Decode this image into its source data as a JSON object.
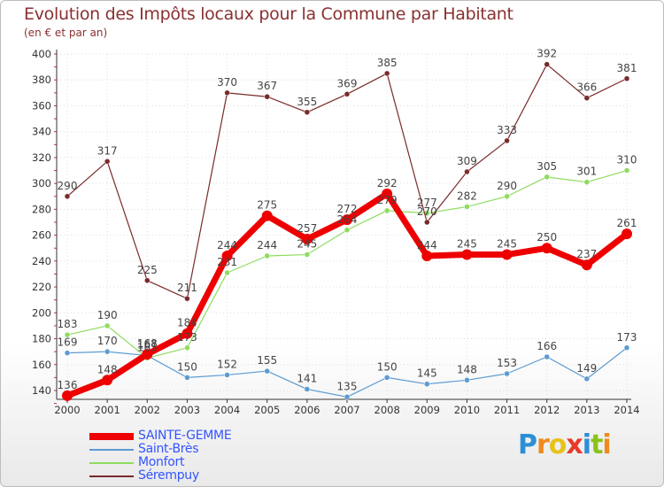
{
  "colors": {
    "title": "#8a3030",
    "axis": "#333333",
    "grid": "#dddddd",
    "label": "#444444",
    "tick_minor": "#cc3333"
  },
  "chart_data": {
    "type": "line",
    "title": "Evolution des Impôts locaux pour la Commune par Habitant",
    "subtitle": "(en € et par an)",
    "xlabel": "",
    "ylabel": "",
    "ylim": [
      130,
      400
    ],
    "yticks": [
      140,
      160,
      180,
      200,
      220,
      240,
      260,
      280,
      300,
      320,
      340,
      360,
      380,
      400
    ],
    "grid": true,
    "categories": [
      "2000",
      "2001",
      "2002",
      "2003",
      "2004",
      "2005",
      "2006",
      "2007",
      "2008",
      "2009",
      "2010",
      "2011",
      "2012",
      "2013",
      "2014"
    ],
    "series": [
      {
        "name": "SAINTE-GEMME",
        "color": "#ee0000",
        "legend_color": "#3355ff",
        "emphasis": true,
        "values": [
          136,
          148,
          168,
          184,
          244,
          275,
          257,
          272,
          292,
          244,
          245,
          245,
          250,
          237,
          261
        ],
        "labels": [
          "136",
          "148",
          "168",
          "184",
          "244",
          "275",
          "257",
          "272",
          "292",
          "244",
          "245",
          "245",
          "250",
          "237",
          "261"
        ]
      },
      {
        "name": "Saint-Brès",
        "color": "#5c9bd1",
        "legend_color": "#3355ff",
        "emphasis": false,
        "values": [
          169,
          170,
          167,
          150,
          152,
          155,
          141,
          135,
          150,
          145,
          148,
          153,
          166,
          149,
          173
        ],
        "labels": [
          "169",
          "170",
          "167",
          "150",
          "152",
          "155",
          "141",
          "135",
          "150",
          "145",
          "148",
          "153",
          "166",
          "149",
          "173"
        ]
      },
      {
        "name": "Monfort",
        "color": "#8fdc5f",
        "legend_color": "#3355ff",
        "emphasis": false,
        "values": [
          183,
          190,
          165,
          173,
          231,
          244,
          245,
          264,
          279,
          277,
          282,
          290,
          305,
          301,
          310
        ],
        "labels": [
          "183",
          "190",
          "165",
          "173",
          "231",
          "244",
          "245",
          "264",
          "279",
          "277",
          "282",
          "290",
          "305",
          "301",
          "310"
        ]
      },
      {
        "name": "Sérempuy",
        "color": "#7a2a2a",
        "legend_color": "#3355ff",
        "emphasis": false,
        "values": [
          290,
          317,
          225,
          211,
          370,
          367,
          355,
          369,
          385,
          270,
          309,
          333,
          392,
          366,
          381
        ],
        "labels": [
          "290",
          "317",
          "225",
          "211",
          "370",
          "367",
          "355",
          "369",
          "385",
          "270",
          "309",
          "333",
          "392",
          "366",
          "381"
        ]
      }
    ]
  },
  "legend": {
    "items": [
      {
        "label": "SAINTE-GEMME"
      },
      {
        "label": "Saint-Brès"
      },
      {
        "label": "Monfort"
      },
      {
        "label": "Sérempuy"
      }
    ]
  },
  "logo": {
    "letters": [
      "P",
      "r",
      "o",
      "x",
      "i",
      "t",
      "i"
    ],
    "colors": [
      "#2b8fd6",
      "#f08a1c",
      "#e8c21a",
      "#e83a2a",
      "#2b8fd6",
      "#8ac21a",
      "#f08a1c"
    ]
  }
}
